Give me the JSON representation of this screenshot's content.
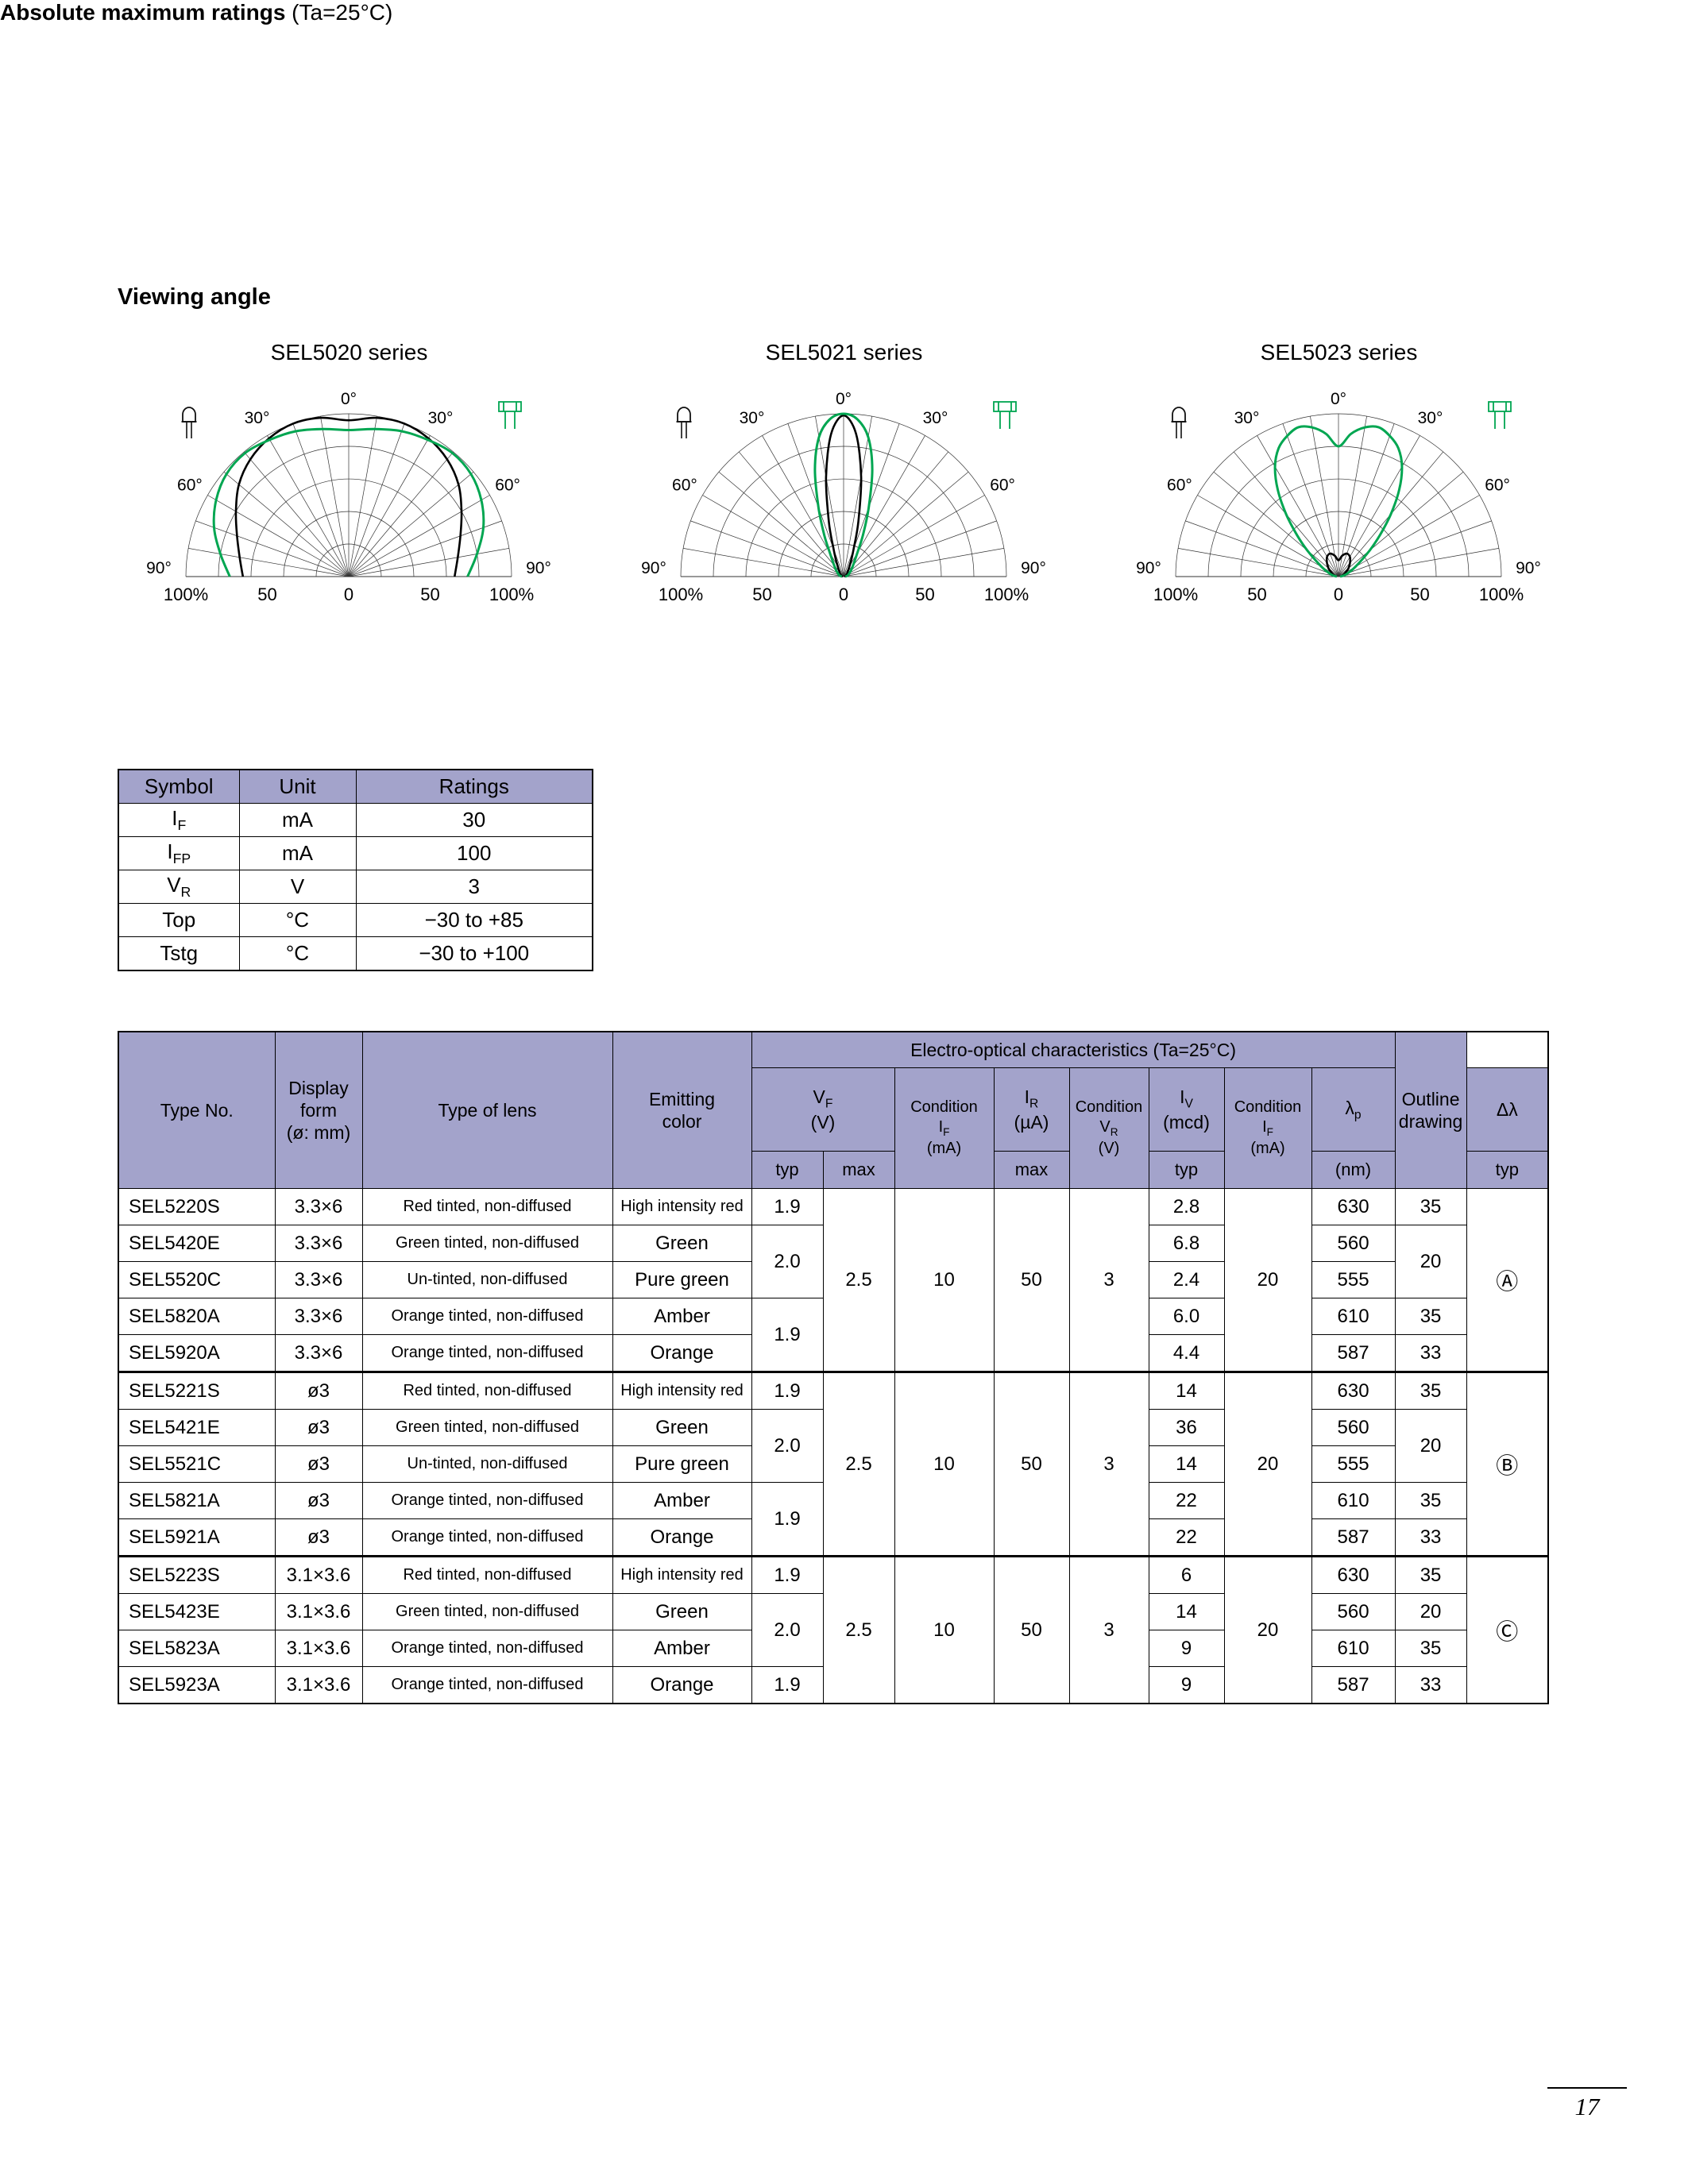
{
  "page": {
    "number": "17"
  },
  "viewing_angle": {
    "heading": "Viewing angle",
    "angle_labels": [
      "0°",
      "30°",
      "60°",
      "90°"
    ],
    "percent_labels": [
      "100%",
      "50",
      "0",
      "50",
      "100%"
    ]
  },
  "chart_data": [
    {
      "type": "polar",
      "title": "SEL5020 series",
      "angle_unit": "degrees from axis",
      "radial_unit": "% relative luminous intensity",
      "radial_ticks": [
        20,
        40,
        60,
        80,
        100
      ],
      "angle_ticks": [
        0,
        30,
        60,
        90
      ],
      "series": [
        {
          "name": "lamp-package-black",
          "color": "#000000",
          "width": 2.6,
          "points": [
            [
              0,
              96
            ],
            [
              10,
              99
            ],
            [
              20,
              100
            ],
            [
              30,
              98
            ],
            [
              40,
              94
            ],
            [
              50,
              88
            ],
            [
              60,
              80
            ],
            [
              70,
              73
            ],
            [
              80,
              68
            ],
            [
              90,
              65
            ]
          ]
        },
        {
          "name": "flat-package-green",
          "color": "#00a651",
          "width": 3,
          "points": [
            [
              0,
              90
            ],
            [
              10,
              92
            ],
            [
              20,
              95
            ],
            [
              30,
              97
            ],
            [
              40,
              99
            ],
            [
              50,
              98
            ],
            [
              60,
              94
            ],
            [
              70,
              88
            ],
            [
              80,
              80
            ],
            [
              90,
              73
            ]
          ]
        }
      ]
    },
    {
      "type": "polar",
      "title": "SEL5021 series",
      "angle_unit": "degrees from axis",
      "radial_unit": "% relative luminous intensity",
      "radial_ticks": [
        20,
        40,
        60,
        80,
        100
      ],
      "angle_ticks": [
        0,
        30,
        60,
        90
      ],
      "series": [
        {
          "name": "lamp-package-black",
          "color": "#000000",
          "width": 2.6,
          "points": [
            [
              0,
              99
            ],
            [
              5,
              88
            ],
            [
              10,
              62
            ],
            [
              15,
              35
            ],
            [
              20,
              18
            ],
            [
              25,
              11
            ],
            [
              30,
              7
            ],
            [
              40,
              4
            ],
            [
              50,
              3
            ],
            [
              60,
              2
            ],
            [
              70,
              1.5
            ],
            [
              80,
              1
            ],
            [
              90,
              0.5
            ]
          ]
        },
        {
          "name": "flat-package-green",
          "color": "#00a651",
          "width": 3,
          "points": [
            [
              0,
              100
            ],
            [
              5,
              97
            ],
            [
              10,
              87
            ],
            [
              15,
              68
            ],
            [
              20,
              45
            ],
            [
              25,
              28
            ],
            [
              30,
              17
            ],
            [
              40,
              9
            ],
            [
              50,
              6
            ],
            [
              60,
              4
            ],
            [
              70,
              3
            ],
            [
              80,
              2
            ],
            [
              90,
              1
            ]
          ]
        }
      ]
    },
    {
      "type": "polar",
      "title": "SEL5023 series",
      "angle_unit": "degrees from axis",
      "radial_unit": "% relative luminous intensity",
      "radial_ticks": [
        20,
        40,
        60,
        80,
        100
      ],
      "angle_ticks": [
        0,
        30,
        60,
        90
      ],
      "series": [
        {
          "name": "lamp-package-black",
          "color": "#000000",
          "width": 2.6,
          "points": [
            [
              0,
              10
            ],
            [
              10,
              13
            ],
            [
              20,
              15
            ],
            [
              30,
              14
            ],
            [
              40,
              11
            ],
            [
              50,
              8
            ],
            [
              60,
              5
            ],
            [
              70,
              3
            ],
            [
              80,
              2
            ],
            [
              90,
              1
            ]
          ]
        },
        {
          "name": "flat-package-green",
          "color": "#00a651",
          "width": 3,
          "points": [
            [
              0,
              80
            ],
            [
              5,
              88
            ],
            [
              10,
              93
            ],
            [
              15,
              95
            ],
            [
              20,
              92
            ],
            [
              25,
              87
            ],
            [
              30,
              78
            ],
            [
              35,
              65
            ],
            [
              40,
              50
            ],
            [
              45,
              36
            ],
            [
              50,
              25
            ],
            [
              60,
              12
            ],
            [
              70,
              6
            ],
            [
              80,
              3
            ],
            [
              90,
              1
            ]
          ]
        }
      ]
    }
  ],
  "ratings": {
    "heading_bold": "Absolute maximum ratings",
    "heading_suffix": " (Ta=25°C)",
    "columns": [
      "Symbol",
      "Unit",
      "Ratings"
    ],
    "rows": [
      {
        "base": "I",
        "sub": "F",
        "unit": "mA",
        "rating": "30"
      },
      {
        "base": "I",
        "sub": "FP",
        "unit": "mA",
        "rating": "100"
      },
      {
        "base": "V",
        "sub": "R",
        "unit": "V",
        "rating": "3"
      },
      {
        "base": "Top",
        "sub": "",
        "unit": "°C",
        "rating": "−30 to +85"
      },
      {
        "base": "Tstg",
        "sub": "",
        "unit": "°C",
        "rating": "−30 to +100"
      }
    ]
  },
  "eo": {
    "header": {
      "span_title": "Electro-optical characteristics (Ta=25°C)",
      "type_no": "Type No.",
      "display_form": [
        "Display",
        "form",
        "(ø: mm)"
      ],
      "lens": "Type of lens",
      "color": [
        "Emitting",
        "color"
      ],
      "outline": [
        "Outline",
        "drawing"
      ],
      "vf": {
        "main": "V",
        "sub": "F",
        "unit": "(V)"
      },
      "ir": {
        "main": "I",
        "sub": "R",
        "unit": "(µA)"
      },
      "iv": {
        "main": "I",
        "sub": "V",
        "unit": "(mcd)"
      },
      "lambda_p": {
        "main": "λ",
        "sub": "p"
      },
      "nm": "(nm)",
      "delta_lambda": "Δλ",
      "cond_if": {
        "l1": "Condition",
        "main": "I",
        "sub": "F",
        "unit": "(mA)"
      },
      "cond_vr": {
        "l1": "Condition",
        "main": "V",
        "sub": "R",
        "unit": "(V)"
      },
      "typ": "typ",
      "max": "max"
    },
    "groups": [
      {
        "outline": "Ⓐ",
        "shared": {
          "vf_max": "2.5",
          "cond_if": "10",
          "ir_max": "50",
          "vr": "3",
          "cond_if2": "20"
        },
        "vf_typ": [
          {
            "value": "1.9",
            "rows": 1
          },
          {
            "value": "2.0",
            "rows": 2
          },
          {
            "value": "1.9",
            "rows": 2
          }
        ],
        "dl": [
          {
            "value": "35",
            "rows": 1
          },
          {
            "value": "20",
            "rows": 2
          },
          {
            "value": "35",
            "rows": 1
          },
          {
            "value": "33",
            "rows": 1
          }
        ],
        "rows": [
          {
            "type": "SEL5220S",
            "form": "3.3×6",
            "lens": "Red tinted, non-diffused",
            "color": "High intensity red",
            "iv": "2.8",
            "lp": "630"
          },
          {
            "type": "SEL5420E",
            "form": "3.3×6",
            "lens": "Green tinted, non-diffused",
            "color": "Green",
            "iv": "6.8",
            "lp": "560"
          },
          {
            "type": "SEL5520C",
            "form": "3.3×6",
            "lens": "Un-tinted, non-diffused",
            "color": "Pure green",
            "iv": "2.4",
            "lp": "555"
          },
          {
            "type": "SEL5820A",
            "form": "3.3×6",
            "lens": "Orange tinted, non-diffused",
            "color": "Amber",
            "iv": "6.0",
            "lp": "610"
          },
          {
            "type": "SEL5920A",
            "form": "3.3×6",
            "lens": "Orange tinted, non-diffused",
            "color": "Orange",
            "iv": "4.4",
            "lp": "587"
          }
        ]
      },
      {
        "outline": "Ⓑ",
        "shared": {
          "vf_max": "2.5",
          "cond_if": "10",
          "ir_max": "50",
          "vr": "3",
          "cond_if2": "20"
        },
        "vf_typ": [
          {
            "value": "1.9",
            "rows": 1
          },
          {
            "value": "2.0",
            "rows": 2
          },
          {
            "value": "1.9",
            "rows": 2
          }
        ],
        "dl": [
          {
            "value": "35",
            "rows": 1
          },
          {
            "value": "20",
            "rows": 2
          },
          {
            "value": "35",
            "rows": 1
          },
          {
            "value": "33",
            "rows": 1
          }
        ],
        "rows": [
          {
            "type": "SEL5221S",
            "form": "ø3",
            "lens": "Red tinted, non-diffused",
            "color": "High intensity red",
            "iv": "14",
            "lp": "630"
          },
          {
            "type": "SEL5421E",
            "form": "ø3",
            "lens": "Green tinted, non-diffused",
            "color": "Green",
            "iv": "36",
            "lp": "560"
          },
          {
            "type": "SEL5521C",
            "form": "ø3",
            "lens": "Un-tinted, non-diffused",
            "color": "Pure green",
            "iv": "14",
            "lp": "555"
          },
          {
            "type": "SEL5821A",
            "form": "ø3",
            "lens": "Orange tinted, non-diffused",
            "color": "Amber",
            "iv": "22",
            "lp": "610"
          },
          {
            "type": "SEL5921A",
            "form": "ø3",
            "lens": "Orange tinted, non-diffused",
            "color": "Orange",
            "iv": "22",
            "lp": "587"
          }
        ]
      },
      {
        "outline": "Ⓒ",
        "shared": {
          "vf_max": "2.5",
          "cond_if": "10",
          "ir_max": "50",
          "vr": "3",
          "cond_if2": "20"
        },
        "vf_typ": [
          {
            "value": "1.9",
            "rows": 1
          },
          {
            "value": "2.0",
            "rows": 2
          },
          {
            "value": "1.9",
            "rows": 1
          }
        ],
        "dl": [
          {
            "value": "35",
            "rows": 1
          },
          {
            "value": "20",
            "rows": 1
          },
          {
            "value": "35",
            "rows": 1
          },
          {
            "value": "33",
            "rows": 1
          }
        ],
        "rows": [
          {
            "type": "SEL5223S",
            "form": "3.1×3.6",
            "lens": "Red tinted, non-diffused",
            "color": "High intensity red",
            "iv": "6",
            "lp": "630"
          },
          {
            "type": "SEL5423E",
            "form": "3.1×3.6",
            "lens": "Green tinted, non-diffused",
            "color": "Green",
            "iv": "14",
            "lp": "560"
          },
          {
            "type": "SEL5823A",
            "form": "3.1×3.6",
            "lens": "Orange tinted, non-diffused",
            "color": "Amber",
            "iv": "9",
            "lp": "610"
          },
          {
            "type": "SEL5923A",
            "form": "3.1×3.6",
            "lens": "Orange tinted, non-diffused",
            "color": "Orange",
            "iv": "9",
            "lp": "587"
          }
        ]
      }
    ]
  }
}
